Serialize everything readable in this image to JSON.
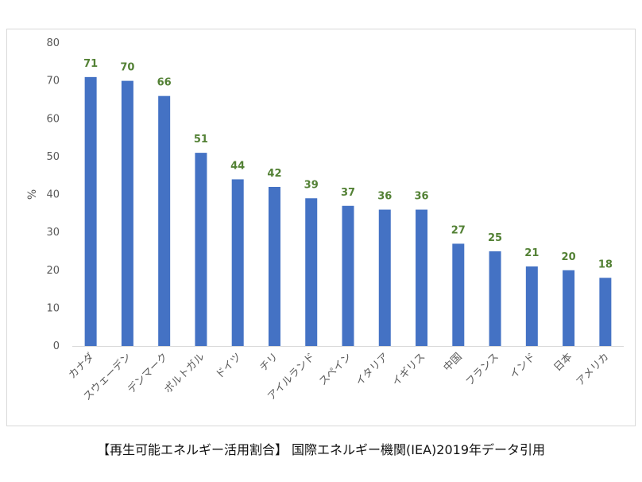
{
  "caption": "【再生可能エネルギー活用割合】 国際エネルギー機関(IEA)2019年データ引用",
  "chart_data": {
    "type": "bar",
    "title": "",
    "xlabel": "",
    "ylabel": "%",
    "ylim": [
      0,
      80
    ],
    "yticks": [
      0,
      10,
      20,
      30,
      40,
      50,
      60,
      70,
      80
    ],
    "grid": false,
    "legend": "none",
    "categories": [
      "カナダ",
      "スウェーデン",
      "デンマーク",
      "ポルトガル",
      "ドイツ",
      "チリ",
      "アイルランド",
      "スペイン",
      "イタリア",
      "イギリス",
      "中国",
      "フランス",
      "インド",
      "日本",
      "アメリカ"
    ],
    "values": [
      71,
      70,
      66,
      51,
      44,
      42,
      39,
      37,
      36,
      36,
      27,
      25,
      21,
      20,
      18
    ],
    "bar_color": "#4472c4",
    "label_color": "#538135"
  }
}
